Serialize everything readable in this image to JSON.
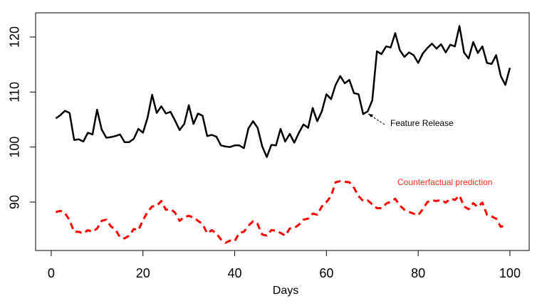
{
  "chart_data": {
    "type": "line",
    "x": [
      1,
      2,
      3,
      4,
      5,
      6,
      7,
      8,
      9,
      10,
      11,
      12,
      13,
      14,
      15,
      16,
      17,
      18,
      19,
      20,
      21,
      22,
      23,
      24,
      25,
      26,
      27,
      28,
      29,
      30,
      31,
      32,
      33,
      34,
      35,
      36,
      37,
      38,
      39,
      40,
      41,
      42,
      43,
      44,
      45,
      46,
      47,
      48,
      49,
      50,
      51,
      52,
      53,
      54,
      55,
      56,
      57,
      58,
      59,
      60,
      61,
      62,
      63,
      64,
      65,
      66,
      67,
      68,
      69,
      70,
      71,
      72,
      73,
      74,
      75,
      76,
      77,
      78,
      79,
      80,
      81,
      82,
      83,
      84,
      85,
      86,
      87,
      88,
      89,
      90,
      91,
      92,
      93,
      94,
      95,
      96,
      97,
      98,
      99,
      100
    ],
    "series": [
      {
        "color": "#000000",
        "dashed": false,
        "values": [
          105.2,
          105.8,
          106.6,
          106.2,
          101.3,
          101.4,
          101.0,
          102.6,
          102.3,
          106.8,
          103.2,
          101.7,
          101.8,
          102.0,
          102.3,
          100.9,
          100.9,
          101.5,
          103.3,
          102.6,
          105.3,
          109.5,
          106.2,
          107.4,
          106.1,
          106.4,
          104.8,
          103.1,
          104.2,
          107.6,
          104.2,
          106.1,
          105.7,
          102.0,
          102.2,
          101.9,
          100.3,
          100.1,
          100.0,
          100.3,
          100.3,
          99.8,
          103.4,
          104.7,
          103.5,
          100.1,
          98.2,
          100.4,
          100.3,
          103.3,
          101.0,
          102.4,
          100.8,
          102.6,
          104.1,
          103.5,
          107.1,
          104.7,
          106.5,
          109.6,
          108.7,
          111.3,
          112.9,
          111.6,
          112.2,
          109.8,
          109.6,
          106.0,
          106.5,
          108.5,
          117.4,
          116.9,
          118.3,
          118.1,
          120.7,
          117.6,
          116.4,
          117.2,
          116.7,
          115.3,
          117.0,
          118.0,
          118.8,
          117.9,
          118.7,
          117.2,
          118.6,
          118.3,
          122.0,
          117.2,
          116.1,
          119.1,
          117.1,
          118.3,
          115.3,
          115.1,
          116.7,
          112.9,
          111.3,
          114.4
        ]
      },
      {
        "name": "Counterfactual prediction",
        "color": "#ff0000",
        "dashed": true,
        "values": [
          88.2,
          88.4,
          88.0,
          86.7,
          84.6,
          84.6,
          84.3,
          84.9,
          84.6,
          85.2,
          86.6,
          86.8,
          85.6,
          85.0,
          83.6,
          83.4,
          83.9,
          85.1,
          84.9,
          86.7,
          88.2,
          89.2,
          89.3,
          90.2,
          88.6,
          88.7,
          88.1,
          86.6,
          87.3,
          87.5,
          87.2,
          86.6,
          86.0,
          84.3,
          84.9,
          84.3,
          83.2,
          82.6,
          83.0,
          82.9,
          84.4,
          84.6,
          85.7,
          86.5,
          86.0,
          84.1,
          83.9,
          84.9,
          84.8,
          84.4,
          83.9,
          85.2,
          85.3,
          85.9,
          86.8,
          87.0,
          87.9,
          87.7,
          89.2,
          90.0,
          91.1,
          93.6,
          93.8,
          93.7,
          93.6,
          92.6,
          91.1,
          90.2,
          90.3,
          89.6,
          88.9,
          88.9,
          89.7,
          90.1,
          90.6,
          89.4,
          88.6,
          88.2,
          87.9,
          87.6,
          88.7,
          90.0,
          90.3,
          90.2,
          90.4,
          89.9,
          90.6,
          90.4,
          91.2,
          89.2,
          88.7,
          89.8,
          89.1,
          89.9,
          87.7,
          87.4,
          87.0,
          85.5,
          85.8,
          null
        ]
      }
    ],
    "annotations": [
      {
        "text": "Feature Release"
      }
    ],
    "xlabel": "Days",
    "xlim": [
      -3.4,
      104.2
    ],
    "xticks": [
      0,
      20,
      40,
      60,
      80,
      100
    ],
    "ylim": [
      81.2,
      124.4
    ],
    "yticks": [
      90,
      100,
      110,
      120
    ]
  }
}
